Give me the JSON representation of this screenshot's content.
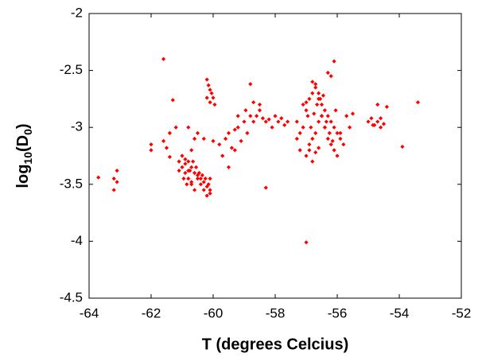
{
  "chart_data": {
    "type": "scatter",
    "x_label": "T (degrees Celcius)",
    "y_label": [
      "log",
      "10",
      "(D",
      "0",
      ")"
    ],
    "color": "#ff0000",
    "xlim": [
      -64,
      -52
    ],
    "xticks": [
      -64,
      -62,
      -60,
      -58,
      -56,
      -54,
      -52
    ],
    "ylim": [
      -4.5,
      -2
    ],
    "yticks": [
      -4.5,
      -4,
      -3.5,
      -3,
      -2.5,
      -2
    ],
    "x": [
      -63.7,
      -63.2,
      -63.2,
      -63.1,
      -63.1,
      -61.6,
      -61.3,
      -62,
      -62,
      -61.6,
      -61.5,
      -61.4,
      -61.1,
      -61.0,
      -60.9,
      -60.8,
      -60.7,
      -60.6,
      -60.5,
      -60.4,
      -60.3,
      -60.2,
      -60.1,
      -61.0,
      -60.9,
      -60.8,
      -60.7,
      -60.6,
      -60.5,
      -60.4,
      -60.3,
      -60.2,
      -60.1,
      -61.1,
      -60.95,
      -60.85,
      -60.75,
      -60.65,
      -60.55,
      -60.45,
      -60.35,
      -60.25,
      -60.15,
      -60.1,
      -60.9,
      -60.8,
      -60.7,
      -60.2,
      -60.15,
      -60.1,
      -60.05,
      -60.0,
      -59.95,
      -60.2,
      -60.1,
      -60.8,
      -60.5,
      -60.3,
      -60,
      -59.8,
      -59.6,
      -59.5,
      -59.3,
      -59.2,
      -59,
      -58.9,
      -58.8,
      -58.7,
      -58.6,
      -58.5,
      -58.4,
      -58.3,
      -58.2,
      -58.1,
      -58,
      -57.9,
      -57.8,
      -57.7,
      -57.6,
      -59.4,
      -59.1,
      -58.95,
      -58.7,
      -58.5,
      -60.6,
      -60.7,
      -59.7,
      -59.2,
      -58.8,
      -58.3,
      -61.2,
      -61.4,
      -57,
      -59.5,
      -59.3,
      -57.3,
      -57.1,
      -57,
      -56.9,
      -56.8,
      -56.7,
      -56.6,
      -56.5,
      -56.4,
      -56.3,
      -56.2,
      -56.1,
      -56,
      -55.9,
      -55.8,
      -57.2,
      -57,
      -56.9,
      -56.8,
      -56.7,
      -56.6,
      -56.5,
      -56.4,
      -56.3,
      -56.2,
      -56.1,
      -56,
      -55.9,
      -57.1,
      -56.95,
      -56.85,
      -56.75,
      -56.65,
      -56.55,
      -56.45,
      -56.35,
      -56.25,
      -56.15,
      -56.05,
      -57.3,
      -57.2,
      -56.8,
      -56.7,
      -56.6,
      -56.5,
      -56.4,
      -56.9,
      -56.8,
      -56.7,
      -56.6,
      -57.0,
      -56.2,
      -56.1,
      -56.3,
      -55.7,
      -55.6,
      -55.5,
      -55,
      -54.9,
      -54.8,
      -54.7,
      -54.6,
      -54.5,
      -54.7,
      -54.4,
      -53.9,
      -53.4,
      -54.85,
      -54.6
    ],
    "values": [
      -3.44,
      -3.45,
      -3.55,
      -3.38,
      -3.48,
      -2.4,
      -2.76,
      -3.15,
      -3.2,
      -3.12,
      -3.18,
      -3.26,
      -3.3,
      -3.35,
      -3.4,
      -3.45,
      -3.5,
      -3.55,
      -3.45,
      -3.5,
      -3.55,
      -3.6,
      -3.58,
      -3.25,
      -3.28,
      -3.3,
      -3.35,
      -3.4,
      -3.42,
      -3.45,
      -3.48,
      -3.52,
      -3.55,
      -3.38,
      -3.45,
      -3.5,
      -3.38,
      -3.3,
      -3.35,
      -3.4,
      -3.42,
      -3.45,
      -3.5,
      -3.45,
      -3.32,
      -3.38,
      -3.48,
      -2.58,
      -2.63,
      -2.67,
      -2.7,
      -2.74,
      -2.8,
      -2.74,
      -2.78,
      -3.0,
      -3.05,
      -3.1,
      -3.12,
      -3.15,
      -3.1,
      -3.05,
      -3.02,
      -3.0,
      -2.95,
      -3.05,
      -2.9,
      -2.95,
      -2.9,
      -2.85,
      -2.92,
      -2.95,
      -2.93,
      -3.0,
      -2.9,
      -2.95,
      -2.92,
      -2.98,
      -2.95,
      -3.18,
      -3.12,
      -2.85,
      -2.78,
      -2.8,
      -3.1,
      -3.2,
      -3.25,
      -2.9,
      -2.62,
      -3.53,
      -3.0,
      -3.05,
      -4.01,
      -3.35,
      -3.2,
      -3.1,
      -3.0,
      -2.85,
      -2.75,
      -2.7,
      -2.65,
      -2.7,
      -2.8,
      -2.85,
      -2.9,
      -2.95,
      -3.0,
      -3.05,
      -3.1,
      -3.15,
      -3.2,
      -3.25,
      -3.15,
      -3.1,
      -3.05,
      -2.95,
      -2.9,
      -3.0,
      -3.1,
      -3.15,
      -3.2,
      -3.25,
      -3.05,
      -2.8,
      -2.9,
      -3.0,
      -2.88,
      -2.8,
      -2.75,
      -2.72,
      -2.95,
      -3.05,
      -3.12,
      -2.85,
      -2.95,
      -3.05,
      -2.6,
      -2.62,
      -2.75,
      -2.9,
      -3.0,
      -3.2,
      -3.3,
      -3.22,
      -3.18,
      -2.78,
      -2.55,
      -2.42,
      -2.52,
      -2.9,
      -3.0,
      -2.88,
      -2.95,
      -2.92,
      -2.98,
      -2.95,
      -3.0,
      -2.97,
      -2.8,
      -2.82,
      -3.17,
      -2.78,
      -2.98,
      -2.92
    ]
  }
}
